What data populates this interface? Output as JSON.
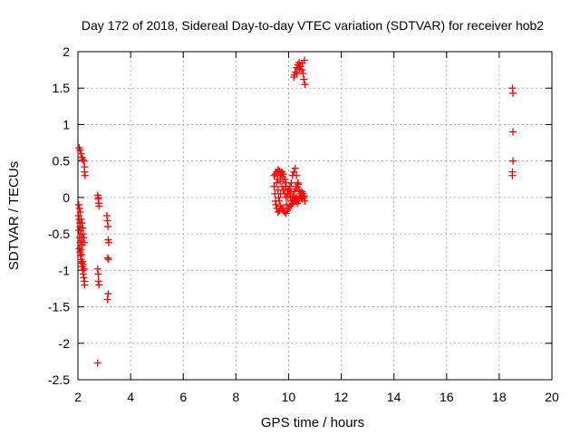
{
  "chart_data": {
    "type": "scatter",
    "title": "Day 172 of 2018, Sidereal Day-to-day VTEC variation (SDTVAR) for receiver hob2",
    "xlabel": "GPS time / hours",
    "ylabel": "SDTVAR / TECUs",
    "xlim": [
      2,
      20
    ],
    "ylim": [
      -2.5,
      2
    ],
    "xticks": [
      2,
      4,
      6,
      8,
      10,
      12,
      14,
      16,
      18,
      20
    ],
    "xtick_labels": [
      "2",
      "4",
      "6",
      "8",
      "10",
      "12",
      "14",
      "16",
      "18",
      "20"
    ],
    "yticks": [
      -2.5,
      -2,
      -1.5,
      -1,
      -0.5,
      0,
      0.5,
      1,
      1.5,
      2
    ],
    "ytick_labels": [
      "-2.5",
      "-2",
      "-1.5",
      "-1",
      "-0.5",
      "0",
      "0.5",
      "1",
      "1.5",
      "2"
    ],
    "grid": true,
    "marker": "+",
    "color": "#ff0000",
    "series": [
      {
        "name": "SDTVAR",
        "points": [
          [
            2.05,
            0.68
          ],
          [
            2.08,
            0.65
          ],
          [
            2.12,
            0.6
          ],
          [
            2.15,
            0.55
          ],
          [
            2.18,
            0.52
          ],
          [
            2.22,
            0.5
          ],
          [
            2.25,
            0.42
          ],
          [
            2.25,
            0.35
          ],
          [
            2.27,
            0.3
          ],
          [
            2.02,
            -0.25
          ],
          [
            2.05,
            -0.3
          ],
          [
            2.07,
            -0.35
          ],
          [
            2.08,
            -0.4
          ],
          [
            2.1,
            -0.45
          ],
          [
            2.12,
            -0.5
          ],
          [
            2.14,
            -0.55
          ],
          [
            2.15,
            -0.6
          ],
          [
            2.16,
            -0.65
          ],
          [
            2.05,
            -0.7
          ],
          [
            2.08,
            -0.75
          ],
          [
            2.1,
            -0.8
          ],
          [
            2.12,
            -0.85
          ],
          [
            2.14,
            -0.9
          ],
          [
            2.16,
            -0.95
          ],
          [
            2.18,
            -1.0
          ],
          [
            2.2,
            -1.05
          ],
          [
            2.22,
            -1.1
          ],
          [
            2.25,
            -1.2
          ],
          [
            2.25,
            -1.15
          ],
          [
            2.03,
            -0.1
          ],
          [
            2.06,
            -0.15
          ],
          [
            2.09,
            -0.2
          ],
          [
            2.12,
            -0.3
          ],
          [
            2.15,
            -0.35
          ],
          [
            2.18,
            -0.42
          ],
          [
            2.2,
            -0.5
          ],
          [
            2.22,
            -0.55
          ],
          [
            2.24,
            -0.62
          ],
          [
            2.04,
            -0.45
          ],
          [
            2.06,
            -0.55
          ],
          [
            2.08,
            -0.62
          ],
          [
            2.11,
            -0.72
          ],
          [
            2.13,
            -0.78
          ],
          [
            2.17,
            -0.88
          ],
          [
            2.19,
            -0.92
          ],
          [
            2.23,
            -0.98
          ],
          [
            2.75,
            0.03
          ],
          [
            2.77,
            -0.02
          ],
          [
            2.79,
            -0.08
          ],
          [
            2.8,
            -0.12
          ],
          [
            2.78,
            0.0
          ],
          [
            2.75,
            -0.98
          ],
          [
            2.77,
            -1.05
          ],
          [
            2.78,
            -1.15
          ],
          [
            2.8,
            -1.2
          ],
          [
            2.75,
            -2.27
          ],
          [
            3.1,
            -0.25
          ],
          [
            3.12,
            -0.32
          ],
          [
            3.14,
            -0.4
          ],
          [
            3.15,
            -0.58
          ],
          [
            3.17,
            -0.62
          ],
          [
            3.13,
            -0.83
          ],
          [
            3.16,
            -0.85
          ],
          [
            3.15,
            -1.32
          ],
          [
            3.12,
            -1.4
          ],
          [
            9.45,
            0.3
          ],
          [
            9.5,
            0.32
          ],
          [
            9.55,
            0.35
          ],
          [
            9.6,
            0.38
          ],
          [
            9.65,
            0.36
          ],
          [
            9.7,
            0.3
          ],
          [
            9.75,
            0.35
          ],
          [
            9.8,
            0.32
          ],
          [
            9.85,
            0.25
          ],
          [
            9.9,
            0.2
          ],
          [
            9.45,
            0.15
          ],
          [
            9.48,
            0.05
          ],
          [
            9.5,
            -0.05
          ],
          [
            9.52,
            -0.1
          ],
          [
            9.55,
            -0.15
          ],
          [
            9.6,
            -0.2
          ],
          [
            9.65,
            -0.18
          ],
          [
            9.7,
            -0.12
          ],
          [
            9.75,
            -0.15
          ],
          [
            9.8,
            -0.18
          ],
          [
            9.85,
            -0.2
          ],
          [
            9.9,
            -0.22
          ],
          [
            9.95,
            -0.18
          ],
          [
            10.0,
            -0.15
          ],
          [
            10.05,
            -0.12
          ],
          [
            10.1,
            -0.1
          ],
          [
            10.15,
            -0.08
          ],
          [
            10.2,
            -0.05
          ],
          [
            10.25,
            -0.02
          ],
          [
            10.3,
            0.0
          ],
          [
            9.55,
            0.2
          ],
          [
            9.6,
            0.1
          ],
          [
            9.62,
            0.0
          ],
          [
            9.65,
            -0.05
          ],
          [
            9.7,
            0.05
          ],
          [
            9.75,
            0.15
          ],
          [
            9.8,
            0.1
          ],
          [
            9.85,
            0.05
          ],
          [
            9.9,
            0.0
          ],
          [
            9.95,
            0.05
          ],
          [
            10.0,
            0.1
          ],
          [
            10.05,
            0.15
          ],
          [
            10.1,
            0.2
          ],
          [
            10.15,
            0.3
          ],
          [
            10.2,
            0.35
          ],
          [
            10.25,
            0.4
          ],
          [
            10.3,
            0.3
          ],
          [
            10.35,
            0.2
          ],
          [
            10.4,
            0.1
          ],
          [
            10.45,
            0.05
          ],
          [
            10.5,
            0.08
          ],
          [
            10.55,
            0.05
          ],
          [
            10.6,
            0.02
          ],
          [
            10.62,
            -0.05
          ],
          [
            10.58,
            0.0
          ],
          [
            10.52,
            -0.02
          ],
          [
            10.48,
            0.0
          ],
          [
            10.42,
            0.02
          ],
          [
            10.38,
            -0.05
          ],
          [
            10.33,
            -0.08
          ],
          [
            9.92,
            -0.1
          ],
          [
            9.97,
            0.0
          ],
          [
            10.02,
            0.05
          ],
          [
            10.07,
            0.0
          ],
          [
            10.12,
            -0.05
          ],
          [
            10.17,
            0.02
          ],
          [
            10.22,
            0.08
          ],
          [
            10.27,
            0.12
          ],
          [
            10.32,
            0.15
          ],
          [
            10.37,
            0.18
          ],
          [
            9.58,
            0.25
          ],
          [
            9.68,
            0.22
          ],
          [
            9.78,
            0.28
          ],
          [
            9.88,
            0.15
          ],
          [
            9.98,
            0.12
          ],
          [
            10.08,
            0.08
          ],
          [
            10.18,
            0.0
          ],
          [
            10.28,
            -0.05
          ],
          [
            10.38,
            -0.02
          ],
          [
            10.48,
            0.02
          ],
          [
            10.2,
            1.65
          ],
          [
            10.25,
            1.72
          ],
          [
            10.3,
            1.78
          ],
          [
            10.35,
            1.82
          ],
          [
            10.4,
            1.85
          ],
          [
            10.45,
            1.8
          ],
          [
            10.5,
            1.75
          ],
          [
            10.55,
            1.7
          ],
          [
            10.6,
            1.88
          ],
          [
            10.62,
            1.55
          ],
          [
            10.22,
            1.68
          ],
          [
            10.32,
            1.7
          ],
          [
            10.42,
            1.76
          ],
          [
            10.52,
            1.84
          ],
          [
            10.58,
            1.62
          ],
          [
            18.5,
            1.5
          ],
          [
            18.52,
            1.43
          ],
          [
            18.52,
            0.9
          ],
          [
            18.52,
            0.5
          ],
          [
            18.5,
            0.35
          ],
          [
            18.5,
            0.3
          ]
        ]
      }
    ]
  }
}
